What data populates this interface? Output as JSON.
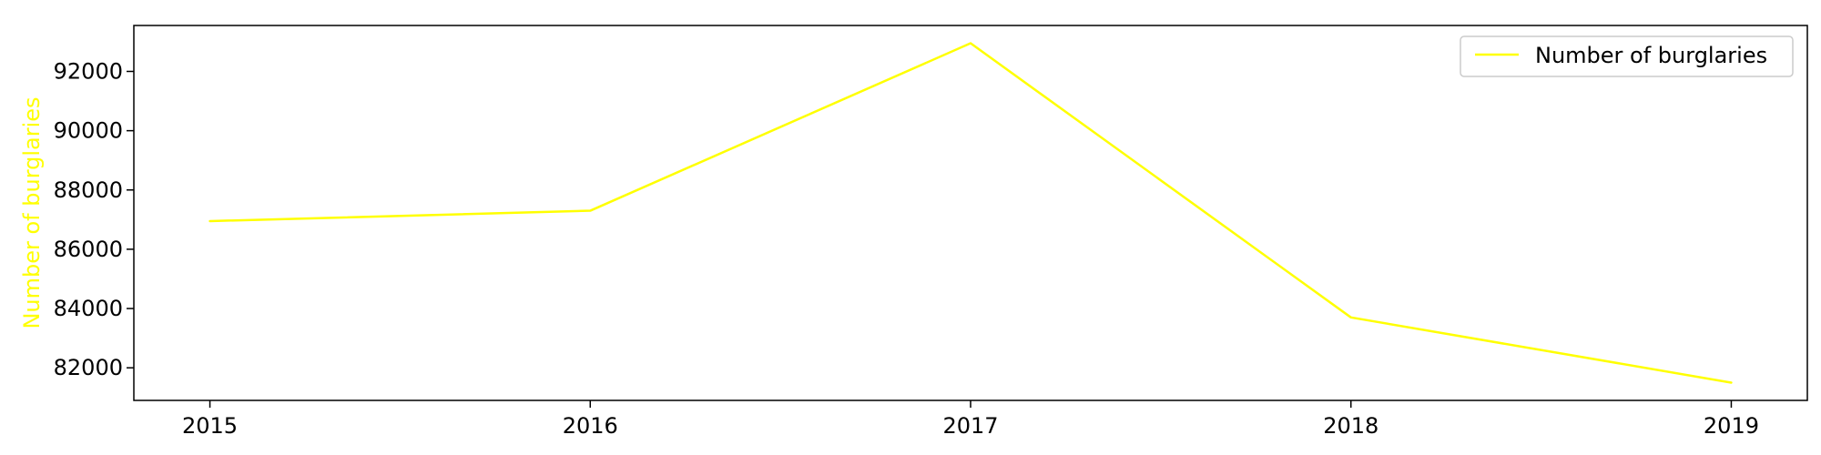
{
  "chart_data": {
    "type": "line",
    "title": "",
    "xlabel": "",
    "ylabel": "Number of burglaries",
    "x": [
      2015,
      2016,
      2017,
      2018,
      2019
    ],
    "series": [
      {
        "name": "Number of burglaries",
        "values": [
          86950,
          87300,
          92950,
          83700,
          81500
        ]
      }
    ],
    "xticks": [
      "2015",
      "2016",
      "2017",
      "2018",
      "2019"
    ],
    "yticks": [
      "82000",
      "84000",
      "86000",
      "88000",
      "90000",
      "92000"
    ],
    "ylim": [
      80900,
      93550
    ],
    "xlim": [
      2014.8,
      2019.2
    ],
    "grid": false,
    "legend_position": "top-right",
    "colors": {
      "series": "#ffff00",
      "ylabel": "#ffff00",
      "axes": "#000000",
      "legend_border": "#cccccc"
    }
  }
}
